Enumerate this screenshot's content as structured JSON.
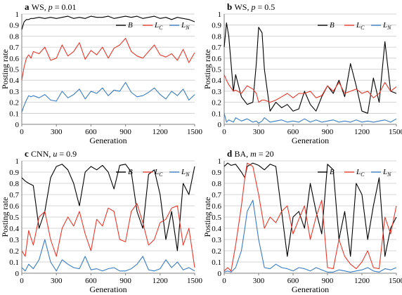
{
  "figure": {
    "series_colors": {
      "B": "#000000",
      "L_C": "#e8382b",
      "L_N": "#3a7dc2"
    }
  },
  "chart_data": [
    {
      "type": "line",
      "panel": "a",
      "title": "WS, p = 0.01",
      "title_parts": {
        "letter": "a",
        "prefix": "WS, ",
        "var": "p",
        "rest": " = 0.01"
      },
      "xlabel": "Generation",
      "ylabel": "Posting rate",
      "xlim": [
        0,
        1500
      ],
      "ylim": [
        0,
        1
      ],
      "xticks": [
        0,
        300,
        600,
        900,
        1200,
        1500
      ],
      "yticks": [
        0,
        0.1,
        0.2,
        0.3,
        0.4,
        0.5,
        0.6,
        0.7,
        0.8,
        0.9,
        1
      ],
      "grid": "horizontal",
      "legend": "top-right",
      "x": [
        0,
        20,
        40,
        60,
        80,
        100,
        150,
        200,
        250,
        300,
        350,
        400,
        450,
        500,
        550,
        600,
        650,
        700,
        750,
        800,
        850,
        900,
        950,
        1000,
        1050,
        1100,
        1150,
        1200,
        1250,
        1300,
        1350,
        1400,
        1450,
        1500
      ],
      "series": [
        {
          "name": "B",
          "values": [
            0.86,
            0.93,
            0.95,
            0.95,
            0.96,
            0.96,
            0.97,
            0.96,
            0.97,
            0.96,
            0.97,
            0.98,
            0.96,
            0.97,
            0.96,
            0.98,
            0.97,
            0.97,
            0.98,
            0.96,
            0.97,
            0.98,
            0.97,
            0.98,
            0.96,
            0.97,
            0.98,
            0.96,
            0.97,
            0.95,
            0.97,
            0.96,
            0.95,
            0.93
          ]
        },
        {
          "name": "L_C",
          "values": [
            0.4,
            0.52,
            0.6,
            0.63,
            0.6,
            0.66,
            0.64,
            0.7,
            0.58,
            0.6,
            0.72,
            0.62,
            0.66,
            0.74,
            0.59,
            0.67,
            0.63,
            0.7,
            0.6,
            0.69,
            0.72,
            0.78,
            0.66,
            0.62,
            0.6,
            0.66,
            0.72,
            0.63,
            0.61,
            0.64,
            0.58,
            0.68,
            0.56,
            0.65
          ]
        },
        {
          "name": "L_N",
          "values": [
            0.11,
            0.17,
            0.22,
            0.26,
            0.25,
            0.26,
            0.24,
            0.27,
            0.22,
            0.21,
            0.3,
            0.24,
            0.27,
            0.32,
            0.23,
            0.3,
            0.28,
            0.33,
            0.26,
            0.31,
            0.3,
            0.38,
            0.29,
            0.25,
            0.26,
            0.29,
            0.33,
            0.27,
            0.23,
            0.3,
            0.26,
            0.32,
            0.22,
            0.27
          ]
        }
      ]
    },
    {
      "type": "line",
      "panel": "b",
      "title": "WS, p = 0.5",
      "title_parts": {
        "letter": "b",
        "prefix": "WS, ",
        "var": "p",
        "rest": " = 0.5"
      },
      "xlabel": "Generation",
      "ylabel": "Posting rate",
      "xlim": [
        0,
        1500
      ],
      "ylim": [
        0,
        1
      ],
      "xticks": [
        0,
        300,
        600,
        900,
        1200,
        1500
      ],
      "yticks": [
        0,
        0.1,
        0.2,
        0.3,
        0.4,
        0.5,
        0.6,
        0.7,
        0.8,
        0.9,
        1
      ],
      "grid": "horizontal",
      "legend": "top-right",
      "x": [
        0,
        20,
        40,
        60,
        80,
        100,
        150,
        200,
        250,
        280,
        300,
        330,
        350,
        400,
        450,
        500,
        550,
        600,
        650,
        700,
        750,
        800,
        850,
        900,
        950,
        1000,
        1050,
        1100,
        1150,
        1200,
        1250,
        1300,
        1350,
        1400,
        1450,
        1500
      ],
      "series": [
        {
          "name": "B",
          "values": [
            0.7,
            0.92,
            0.8,
            0.55,
            0.3,
            0.45,
            0.25,
            0.18,
            0.2,
            0.55,
            0.88,
            0.83,
            0.5,
            0.12,
            0.2,
            0.15,
            0.18,
            0.12,
            0.14,
            0.3,
            0.18,
            0.12,
            0.25,
            0.35,
            0.28,
            0.4,
            0.25,
            0.55,
            0.35,
            0.12,
            0.1,
            0.42,
            0.2,
            0.75,
            0.3,
            0.28
          ]
        },
        {
          "name": "L_C",
          "values": [
            0.45,
            0.4,
            0.36,
            0.33,
            0.3,
            0.31,
            0.28,
            0.35,
            0.32,
            0.28,
            0.2,
            0.22,
            0.22,
            0.2,
            0.22,
            0.25,
            0.28,
            0.24,
            0.28,
            0.28,
            0.3,
            0.24,
            0.26,
            0.35,
            0.3,
            0.38,
            0.28,
            0.3,
            0.32,
            0.28,
            0.3,
            0.24,
            0.28,
            0.38,
            0.3,
            0.34
          ]
        },
        {
          "name": "L_N",
          "values": [
            0.1,
            0.02,
            0.04,
            0.03,
            0.02,
            0.06,
            0.03,
            0.05,
            0.02,
            0.03,
            0.01,
            0.03,
            0.06,
            0.02,
            0.03,
            0.04,
            0.02,
            0.03,
            0.02,
            0.05,
            0.02,
            0.04,
            0.02,
            0.03,
            0.04,
            0.02,
            0.03,
            0.02,
            0.04,
            0.02,
            0.03,
            0.02,
            0.03,
            0.04,
            0.02,
            0.05
          ]
        }
      ]
    },
    {
      "type": "line",
      "panel": "c",
      "title": "CNN, u = 0.9",
      "title_parts": {
        "letter": "c",
        "prefix": "CNN, ",
        "var": "u",
        "rest": " = 0.9"
      },
      "xlabel": "Generation",
      "ylabel": "Posting rate",
      "xlim": [
        0,
        1500
      ],
      "ylim": [
        0,
        1
      ],
      "xticks": [
        0,
        300,
        600,
        900,
        1200,
        1500
      ],
      "yticks": [
        0,
        0.1,
        0.2,
        0.3,
        0.4,
        0.5,
        0.6,
        0.7,
        0.8,
        0.9,
        1
      ],
      "grid": "horizontal",
      "legend": "top-right",
      "x": [
        0,
        30,
        60,
        100,
        150,
        200,
        250,
        300,
        350,
        400,
        450,
        500,
        550,
        600,
        650,
        700,
        750,
        800,
        850,
        900,
        950,
        1000,
        1050,
        1100,
        1150,
        1200,
        1250,
        1300,
        1350,
        1400,
        1450,
        1500
      ],
      "series": [
        {
          "name": "B",
          "values": [
            0.85,
            0.82,
            0.8,
            0.78,
            0.4,
            0.55,
            0.85,
            0.95,
            0.97,
            0.92,
            0.8,
            0.6,
            0.9,
            0.95,
            0.92,
            0.96,
            0.9,
            0.75,
            0.96,
            0.97,
            0.9,
            0.55,
            0.4,
            0.88,
            0.92,
            0.7,
            0.3,
            0.55,
            0.2,
            0.8,
            0.7,
            0.95
          ]
        },
        {
          "name": "L_C",
          "values": [
            0.2,
            0.15,
            0.38,
            0.25,
            0.5,
            0.55,
            0.3,
            0.15,
            0.4,
            0.5,
            0.42,
            0.55,
            0.35,
            0.2,
            0.48,
            0.42,
            0.58,
            0.55,
            0.3,
            0.28,
            0.55,
            0.62,
            0.45,
            0.25,
            0.3,
            0.45,
            0.48,
            0.58,
            0.6,
            0.25,
            0.4,
            0.05
          ]
        },
        {
          "name": "L_N",
          "values": [
            0.05,
            0.02,
            0.08,
            0.04,
            0.12,
            0.3,
            0.1,
            0.02,
            0.12,
            0.08,
            0.05,
            0.04,
            0.15,
            0.03,
            0.04,
            0.02,
            0.04,
            0.05,
            0.02,
            0.02,
            0.04,
            0.08,
            0.15,
            0.03,
            0.02,
            0.04,
            0.12,
            0.05,
            0.1,
            0.03,
            0.05,
            0.02
          ]
        }
      ]
    },
    {
      "type": "line",
      "panel": "d",
      "title": "BA, m = 20",
      "title_parts": {
        "letter": "d",
        "prefix": "BA, ",
        "var": "m",
        "rest": " = 20"
      },
      "xlabel": "Generation",
      "ylabel": "Posting rate",
      "xlim": [
        0,
        1500
      ],
      "ylim": [
        0,
        1
      ],
      "xticks": [
        0,
        300,
        600,
        900,
        1200,
        1500
      ],
      "yticks": [
        0,
        0.1,
        0.2,
        0.3,
        0.4,
        0.5,
        0.6,
        0.7,
        0.8,
        0.9,
        1
      ],
      "grid": "horizontal",
      "legend": "top-right",
      "x": [
        0,
        30,
        60,
        100,
        150,
        180,
        200,
        250,
        300,
        350,
        400,
        450,
        500,
        550,
        600,
        650,
        700,
        750,
        800,
        850,
        900,
        950,
        1000,
        1050,
        1100,
        1150,
        1200,
        1250,
        1300,
        1350,
        1400,
        1450,
        1500
      ],
      "series": [
        {
          "name": "B",
          "values": [
            0.95,
            0.98,
            0.96,
            0.97,
            0.9,
            0.85,
            0.95,
            0.98,
            0.96,
            0.92,
            0.97,
            0.95,
            0.55,
            0.15,
            0.5,
            0.55,
            0.4,
            0.8,
            0.55,
            0.35,
            0.97,
            0.92,
            0.3,
            0.55,
            0.15,
            0.8,
            0.7,
            0.3,
            0.6,
            0.85,
            0.15,
            0.4,
            0.5
          ]
        },
        {
          "name": "L_C",
          "values": [
            0.02,
            0.05,
            0.02,
            0.25,
            0.6,
            0.85,
            0.98,
            0.95,
            0.7,
            0.4,
            0.5,
            0.45,
            0.55,
            0.6,
            0.35,
            0.48,
            0.6,
            0.3,
            0.5,
            0.65,
            0.05,
            0.04,
            0.3,
            0.15,
            0.08,
            0.04,
            0.1,
            0.2,
            0.05,
            0.04,
            0.5,
            0.35,
            0.6
          ]
        },
        {
          "name": "L_N",
          "values": [
            0.01,
            0.02,
            0.01,
            0.05,
            0.2,
            0.4,
            0.55,
            0.65,
            0.3,
            0.05,
            0.04,
            0.08,
            0.05,
            0.04,
            0.02,
            0.05,
            0.04,
            0.02,
            0.05,
            0.03,
            0.01,
            0.01,
            0.03,
            0.02,
            0.01,
            0.02,
            0.03,
            0.05,
            0.02,
            0.01,
            0.04,
            0.03,
            0.05
          ]
        }
      ]
    }
  ]
}
